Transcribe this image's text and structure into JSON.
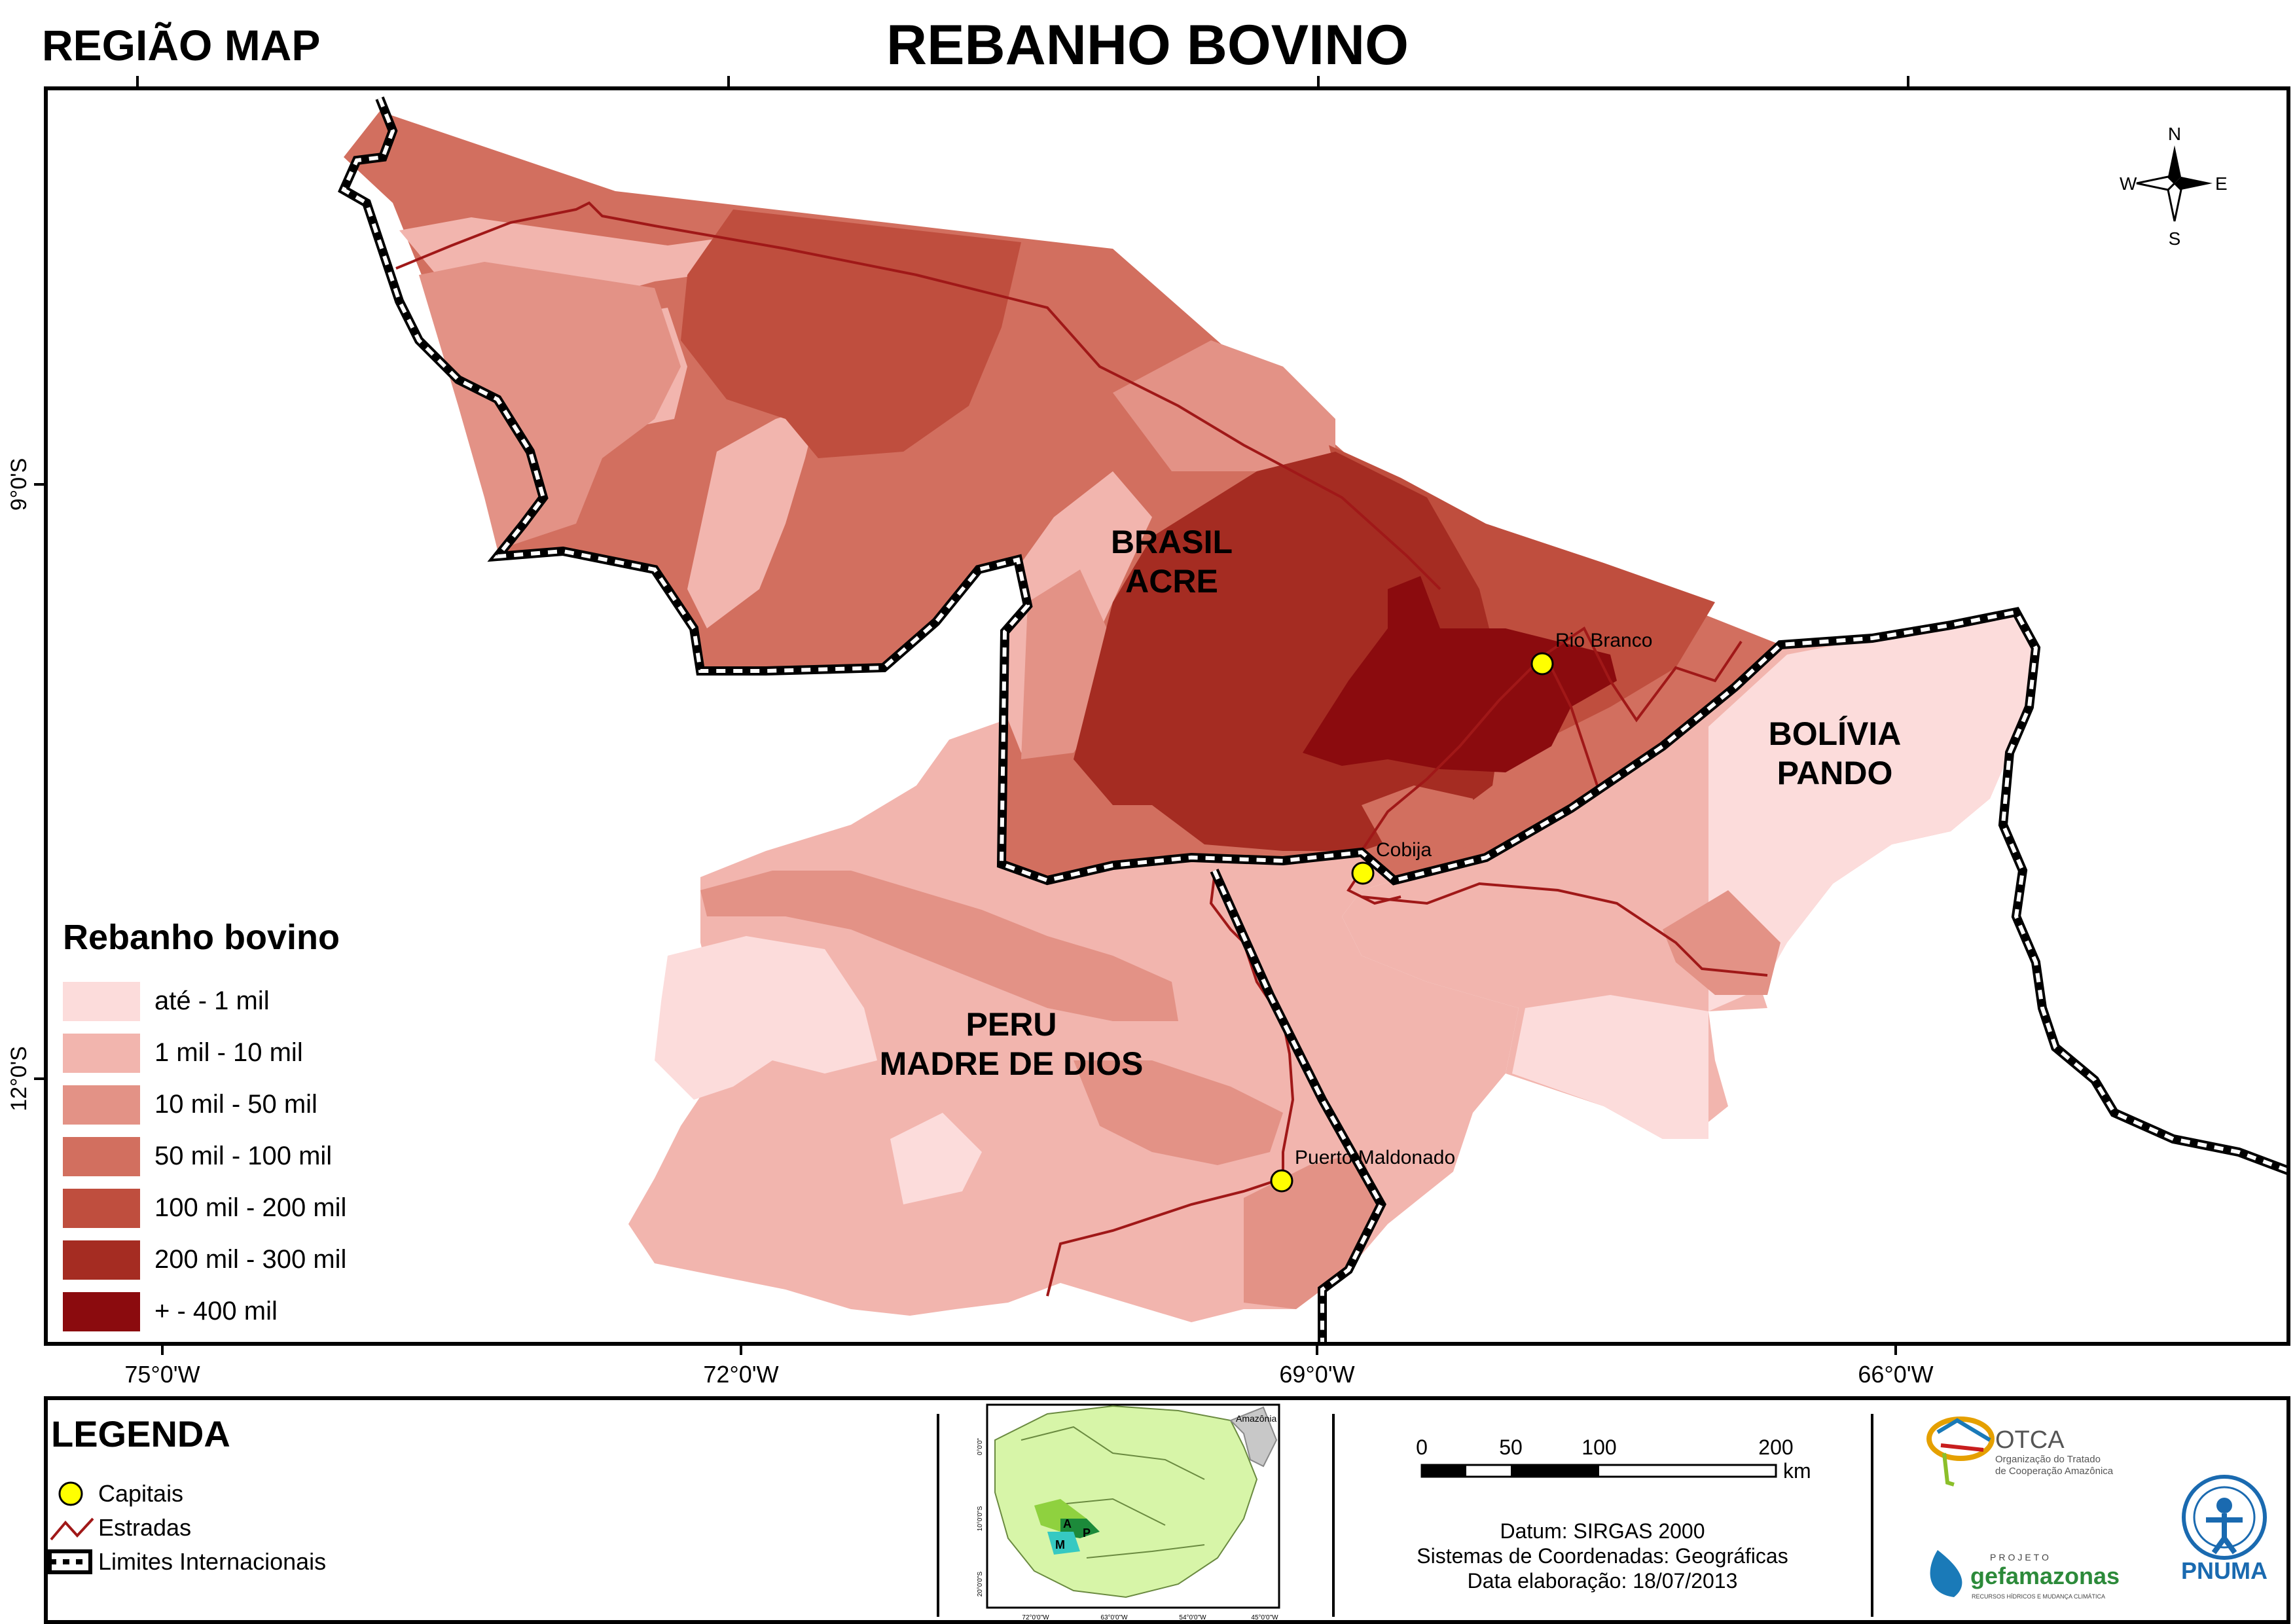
{
  "header": {
    "region_label": "REGIÃO MAP",
    "title": "REBANHO BOVINO"
  },
  "graticule": {
    "longitudes": [
      "75°0'W",
      "72°0'W",
      "69°0'W",
      "66°0'W"
    ],
    "latitudes": [
      "9°0'S",
      "12°0'S"
    ]
  },
  "compass": {
    "n": "N",
    "s": "S",
    "e": "E",
    "w": "W"
  },
  "regions": {
    "brasil": [
      "BRASIL",
      "ACRE"
    ],
    "bolivia": [
      "BOLÍVIA",
      "PANDO"
    ],
    "peru": [
      "PERU",
      "MADRE DE DIOS"
    ]
  },
  "cities": [
    {
      "name": "Rio Branco",
      "color": "#ffff00"
    },
    {
      "name": "Cobija",
      "color": "#ffff00"
    },
    {
      "name": "Puerto Maldonado",
      "color": "#ffff00"
    }
  ],
  "choropleth_legend": {
    "title": "Rebanho bovino",
    "classes": [
      {
        "label": "até - 1 mil",
        "color": "#fcdcdb"
      },
      {
        "label": "1 mil - 10 mil",
        "color": "#f2b5ae"
      },
      {
        "label": "10 mil - 50 mil",
        "color": "#e39286"
      },
      {
        "label": "50 mil - 100 mil",
        "color": "#d26f5f"
      },
      {
        "label": "100 mil - 200 mil",
        "color": "#bf4e3e"
      },
      {
        "label": "200 mil - 300 mil",
        "color": "#a52c22"
      },
      {
        "label": "+ - 400 mil",
        "color": "#8b0b0e"
      }
    ]
  },
  "legend": {
    "title": "LEGENDA",
    "items": {
      "capitals": "Capitais",
      "roads": "Estradas",
      "borders": "Limites Internacionais"
    }
  },
  "inset_map": {
    "label": "Amazônia",
    "letters": [
      "A",
      "P",
      "M"
    ],
    "lat_ticks": [
      "0°0'0\"",
      "10°0'0\"S",
      "20°0'0\"S"
    ],
    "lon_ticks": [
      "72°0'0\"W",
      "63°0'0\"W",
      "54°0'0\"W",
      "45°0'0\"W"
    ]
  },
  "scale_bar": {
    "ticks": [
      "0",
      "50",
      "100",
      "200"
    ],
    "unit": "km"
  },
  "metadata": {
    "datum": "Datum: SIRGAS 2000",
    "crs": "Sistemas de Coordenadas: Geográficas",
    "date": "Data elaboração: 18/07/2013"
  },
  "logos": {
    "otca_name": "OTCA",
    "otca_sub1": "Organização do Tratado",
    "otca_sub2": "de Cooperação Amazônica",
    "gef_top": "PROJETO",
    "gef_name": "gefamazonas",
    "gef_sub": "RECURSOS HÍDRICOS E MUDANÇA CLIMÁTICA",
    "pnuma": "PNUMA"
  },
  "colors": {
    "road": "#a01818",
    "capital_fill": "#ffff00",
    "frame": "#000000"
  }
}
